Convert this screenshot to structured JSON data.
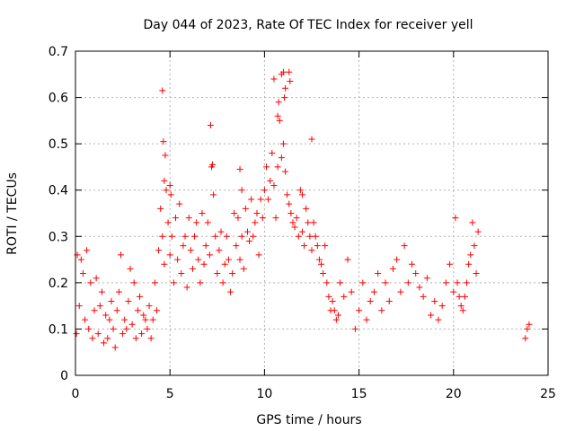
{
  "chart_data": {
    "type": "scatter",
    "title": "Day 044 of 2023, Rate Of TEC Index for receiver yell",
    "xlabel": "GPS time / hours",
    "ylabel": "ROTI / TECUs",
    "xlim": [
      0,
      25
    ],
    "ylim": [
      0,
      0.7
    ],
    "xticks": [
      "0",
      "5",
      "10",
      "15",
      "20",
      "25"
    ],
    "xtick_values": [
      0,
      5,
      10,
      15,
      20,
      25
    ],
    "yticks": [
      "0",
      "0.1",
      "0.2",
      "0.3",
      "0.4",
      "0.5",
      "0.6",
      "0.7"
    ],
    "ytick_values": [
      0,
      0.1,
      0.2,
      0.3,
      0.4,
      0.5,
      0.6,
      0.7
    ],
    "grid": true,
    "marker": "+",
    "color": "#ff0000",
    "series": [
      {
        "x": [
          0.05,
          0.1,
          0.2,
          0.3,
          0.4,
          0.5,
          0.6,
          0.7,
          0.8,
          0.9,
          1.0,
          1.1,
          1.2,
          1.3,
          1.4,
          1.5,
          1.6,
          1.7,
          1.8,
          1.9,
          2.0,
          2.1,
          2.2,
          2.3,
          2.4,
          2.5,
          2.6,
          2.7,
          2.8,
          2.9,
          3.0,
          3.1,
          3.2,
          3.3,
          3.4,
          3.5,
          3.6,
          3.7,
          3.8,
          3.9,
          4.0,
          4.1,
          4.2,
          4.3,
          4.4,
          4.5,
          4.6,
          4.7,
          4.8,
          4.9,
          5.0,
          5.1,
          5.2,
          5.3,
          5.4,
          5.5,
          5.6,
          5.7,
          5.8,
          5.9,
          6.0,
          6.1,
          6.2,
          6.3,
          6.4,
          6.5,
          6.6,
          6.7,
          6.8,
          6.9,
          7.0,
          7.1,
          7.2,
          7.3,
          7.4,
          7.5,
          7.6,
          7.7,
          7.8,
          7.9,
          8.0,
          8.1,
          8.2,
          8.3,
          8.4,
          8.5,
          8.6,
          8.7,
          8.8,
          8.9,
          9.0,
          9.1,
          9.2,
          9.3,
          9.4,
          9.5,
          9.6,
          9.7,
          9.8,
          9.9,
          10.0,
          10.1,
          10.2,
          10.3,
          10.4,
          10.5,
          10.6,
          10.7,
          10.8,
          10.9,
          11.0,
          11.1,
          11.2,
          11.3,
          11.4,
          11.5,
          11.6,
          11.7,
          11.8,
          11.9,
          12.0,
          12.1,
          12.2,
          12.3,
          12.4,
          12.5,
          12.6,
          12.7,
          12.8,
          12.9,
          13.0,
          13.1,
          13.2,
          13.3,
          13.4,
          13.5,
          13.6,
          13.7,
          13.8,
          13.9,
          14.0,
          14.2,
          14.4,
          14.6,
          14.8,
          15.0,
          15.2,
          15.4,
          15.6,
          15.8,
          16.0,
          16.2,
          16.4,
          16.6,
          16.8,
          17.0,
          17.2,
          17.4,
          17.6,
          17.8,
          18.0,
          18.2,
          18.4,
          18.6,
          18.8,
          19.0,
          19.2,
          19.4,
          19.6,
          19.8,
          20.0,
          20.1,
          20.2,
          20.3,
          20.4,
          20.5,
          20.6,
          20.7,
          20.8,
          20.9,
          21.0,
          21.1,
          21.2,
          21.3,
          23.8,
          23.9,
          24.0,
          4.6,
          4.65,
          4.75,
          10.5,
          10.9,
          11.0,
          11.1,
          11.3,
          11.35,
          7.15,
          7.25,
          10.7,
          11.05,
          10.75,
          4.7,
          5.0,
          5.05,
          12.5,
          12.0,
          8.7,
          8.8
        ],
        "y": [
          0.09,
          0.26,
          0.15,
          0.25,
          0.22,
          0.12,
          0.27,
          0.1,
          0.2,
          0.08,
          0.14,
          0.21,
          0.09,
          0.15,
          0.18,
          0.07,
          0.13,
          0.08,
          0.12,
          0.16,
          0.1,
          0.06,
          0.14,
          0.18,
          0.26,
          0.09,
          0.12,
          0.1,
          0.16,
          0.23,
          0.11,
          0.2,
          0.08,
          0.14,
          0.17,
          0.09,
          0.13,
          0.12,
          0.1,
          0.15,
          0.08,
          0.12,
          0.2,
          0.14,
          0.27,
          0.36,
          0.3,
          0.24,
          0.4,
          0.33,
          0.26,
          0.3,
          0.2,
          0.34,
          0.25,
          0.37,
          0.22,
          0.28,
          0.3,
          0.19,
          0.34,
          0.27,
          0.23,
          0.3,
          0.33,
          0.25,
          0.2,
          0.35,
          0.24,
          0.28,
          0.33,
          0.26,
          0.45,
          0.39,
          0.3,
          0.22,
          0.27,
          0.31,
          0.2,
          0.24,
          0.3,
          0.25,
          0.18,
          0.22,
          0.35,
          0.28,
          0.34,
          0.25,
          0.3,
          0.23,
          0.36,
          0.31,
          0.29,
          0.38,
          0.3,
          0.33,
          0.35,
          0.26,
          0.38,
          0.34,
          0.4,
          0.45,
          0.38,
          0.42,
          0.48,
          0.41,
          0.34,
          0.45,
          0.55,
          0.47,
          0.5,
          0.44,
          0.39,
          0.37,
          0.35,
          0.33,
          0.32,
          0.34,
          0.3,
          0.4,
          0.31,
          0.28,
          0.36,
          0.33,
          0.3,
          0.27,
          0.33,
          0.3,
          0.28,
          0.25,
          0.24,
          0.22,
          0.28,
          0.2,
          0.17,
          0.14,
          0.16,
          0.14,
          0.12,
          0.13,
          0.2,
          0.17,
          0.25,
          0.18,
          0.1,
          0.14,
          0.2,
          0.12,
          0.16,
          0.18,
          0.22,
          0.14,
          0.2,
          0.16,
          0.23,
          0.25,
          0.18,
          0.28,
          0.2,
          0.24,
          0.22,
          0.19,
          0.17,
          0.21,
          0.13,
          0.16,
          0.12,
          0.15,
          0.2,
          0.24,
          0.18,
          0.34,
          0.2,
          0.17,
          0.15,
          0.14,
          0.17,
          0.2,
          0.24,
          0.26,
          0.33,
          0.28,
          0.22,
          0.31,
          0.08,
          0.1,
          0.11,
          0.615,
          0.505,
          0.475,
          0.64,
          0.65,
          0.655,
          0.62,
          0.655,
          0.635,
          0.54,
          0.455,
          0.56,
          0.6,
          0.59,
          0.42,
          0.41,
          0.39,
          0.51,
          0.39,
          0.445,
          0.4
        ]
      }
    ]
  }
}
